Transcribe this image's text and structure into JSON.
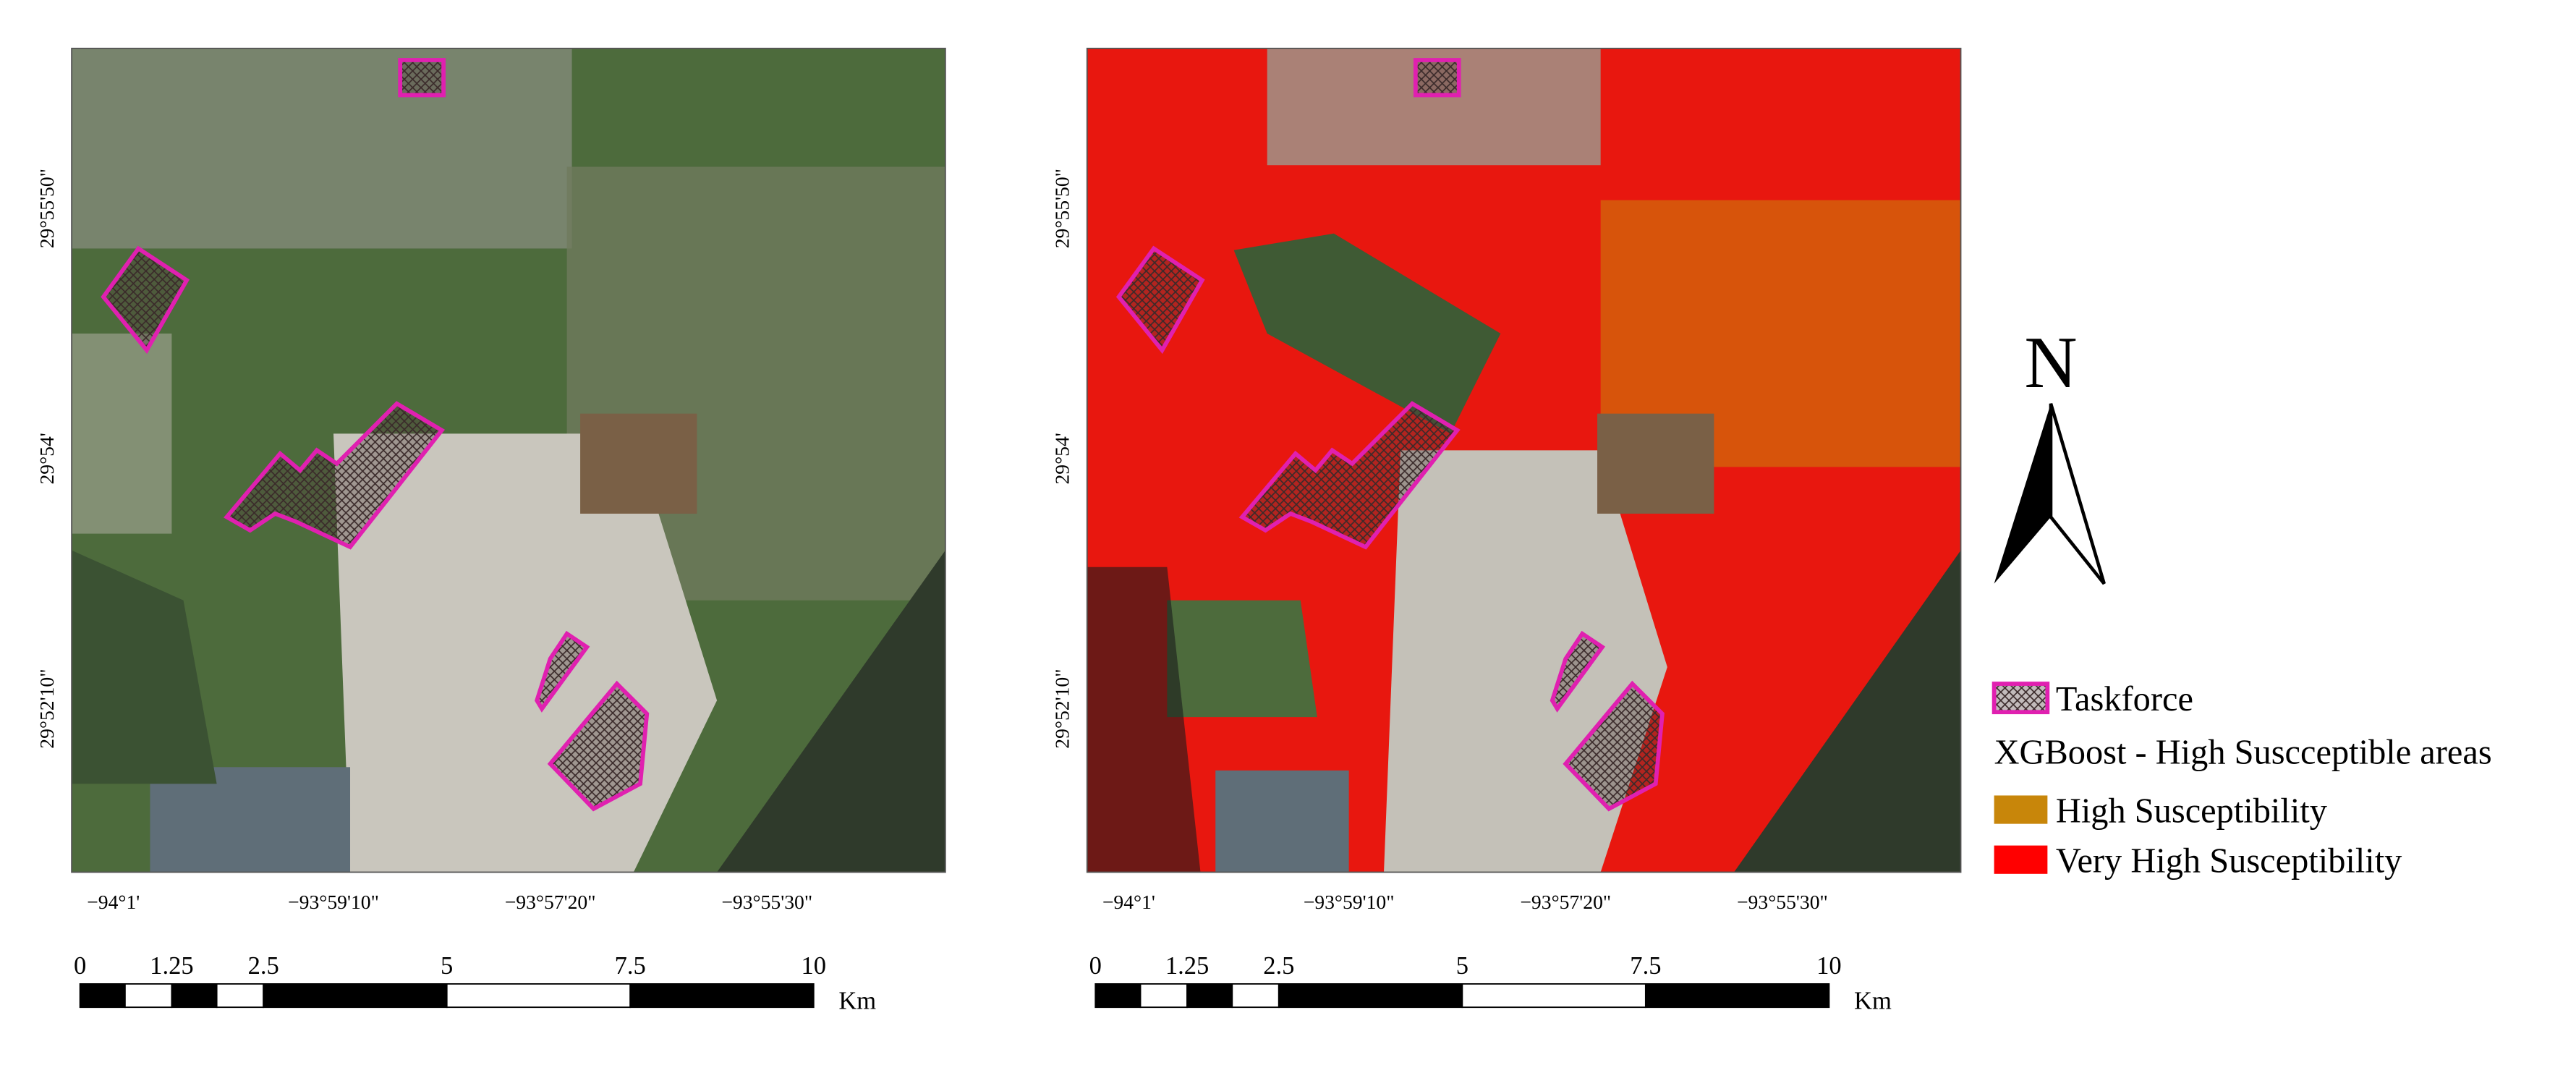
{
  "maps": [
    {
      "x_labels": [
        "−94°1'",
        "−93°59'10\"",
        "−93°57'20\"",
        "−93°55'30\""
      ],
      "y_labels": [
        "29°55'50\"",
        "29°54'",
        "29°52'10\""
      ],
      "scale": {
        "labels": [
          "0",
          "1.25",
          "2.5",
          "5",
          "7.5",
          "10"
        ],
        "unit": "Km"
      }
    },
    {
      "x_labels": [
        "−94°1'",
        "−93°59'10\"",
        "−93°57'20\"",
        "−93°55'30\""
      ],
      "y_labels": [
        "29°55'50\"",
        "29°54'",
        "29°52'10\""
      ],
      "scale": {
        "labels": [
          "0",
          "1.25",
          "2.5",
          "5",
          "7.5",
          "10"
        ],
        "unit": "Km"
      }
    }
  ],
  "north": "N",
  "legend": {
    "taskforce": "Taskforce",
    "title": "XGBoost - High Suscceptible areas",
    "items": [
      {
        "label": "High Susceptibility",
        "color": "#c8860a"
      },
      {
        "label": "Very High Susceptibility",
        "color": "#ff0000"
      }
    ]
  }
}
